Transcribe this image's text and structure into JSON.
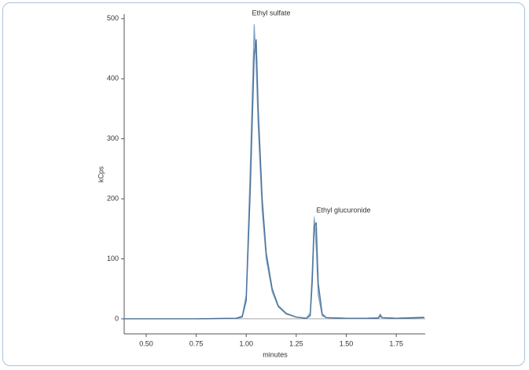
{
  "chart_data": {
    "type": "line",
    "x_label": "minutes",
    "y_label": "kCps",
    "annotations": [
      "Ethyl sulfate",
      "Ethyl glucuronide"
    ],
    "x": [
      0.39,
      0.5,
      0.75,
      0.95,
      0.98,
      1.0,
      1.02,
      1.04,
      1.05,
      1.06,
      1.08,
      1.1,
      1.13,
      1.16,
      1.2,
      1.25,
      1.3,
      1.32,
      1.33,
      1.34,
      1.35,
      1.36,
      1.38,
      1.4,
      1.5,
      1.6,
      1.66,
      1.67,
      1.68,
      1.75,
      1.89
    ],
    "series": [
      {
        "color": "#a9c4dc",
        "values": [
          0,
          0,
          0,
          1,
          4,
          35,
          230,
          470,
          440,
          330,
          190,
          105,
          48,
          21,
          8,
          3,
          1,
          7,
          70,
          170,
          140,
          50,
          6,
          2,
          1,
          1,
          2,
          6,
          2,
          1,
          2
        ]
      },
      {
        "color": "#7fa6c9",
        "values": [
          0,
          0,
          0,
          1,
          5,
          40,
          250,
          490,
          420,
          320,
          180,
          100,
          45,
          20,
          8,
          3,
          1,
          10,
          80,
          165,
          120,
          40,
          5,
          2,
          1,
          1,
          2,
          8,
          2,
          1,
          3
        ]
      },
      {
        "color": "#4a6f95",
        "values": [
          0,
          0,
          0,
          1,
          3,
          30,
          210,
          440,
          465,
          350,
          200,
          110,
          50,
          22,
          9,
          3,
          1,
          5,
          60,
          155,
          160,
          60,
          8,
          2,
          1,
          1,
          1,
          5,
          2,
          1,
          2
        ]
      }
    ],
    "xlim": [
      0.39,
      1.895
    ],
    "ylim": [
      -25,
      505
    ],
    "xticks": [
      {
        "value": 0.5,
        "label": "0.50"
      },
      {
        "value": 0.75,
        "label": "0.75"
      },
      {
        "value": 1.0,
        "label": "1.00"
      },
      {
        "value": 1.25,
        "label": "1.25"
      },
      {
        "value": 1.5,
        "label": "1.50"
      },
      {
        "value": 1.75,
        "label": "1.75"
      }
    ],
    "yticks": [
      0,
      100,
      200,
      300,
      400,
      500
    ]
  }
}
